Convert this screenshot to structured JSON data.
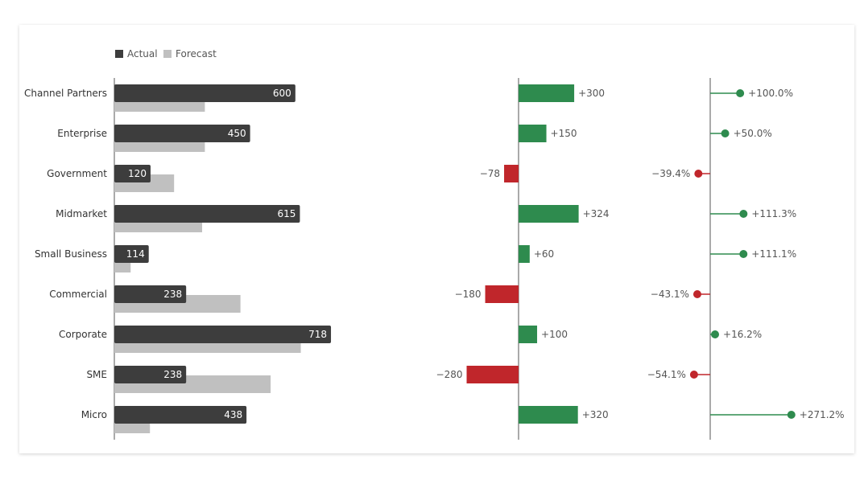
{
  "chart_data": {
    "type": "bar",
    "legend": {
      "placement": "top-left",
      "items": [
        {
          "label": "Actual",
          "color": "#3d3d3d"
        },
        {
          "label": "Forecast",
          "color": "#c0c0c0"
        }
      ]
    },
    "categories": [
      "Channel Partners",
      "Enterprise",
      "Government",
      "Midmarket",
      "Small Business",
      "Commercial",
      "Corporate",
      "SME",
      "Micro"
    ],
    "series": [
      {
        "name": "Actual",
        "values": [
          600,
          450,
          120,
          615,
          114,
          238,
          718,
          238,
          438
        ],
        "labels": [
          "600",
          "450",
          "120",
          "615",
          "114",
          "238",
          "718",
          "238",
          "438"
        ]
      },
      {
        "name": "Forecast",
        "values": [
          300,
          300,
          198,
          291,
          54,
          418,
          618,
          518,
          118
        ]
      }
    ],
    "variance": {
      "values": [
        300,
        150,
        -78,
        324,
        60,
        -180,
        100,
        -280,
        320
      ],
      "labels": [
        "+300",
        "+150",
        "−78",
        "+324",
        "+60",
        "−180",
        "+100",
        "−280",
        "+320"
      ]
    },
    "variance_percent": {
      "values": [
        100.0,
        50.0,
        -39.4,
        111.3,
        111.1,
        -43.1,
        16.2,
        -54.1,
        271.2
      ],
      "labels": [
        "+100.0%",
        "+50.0%",
        "−39.4%",
        "+111.3%",
        "+111.1%",
        "−43.1%",
        "+16.2%",
        "−54.1%",
        "+271.2%"
      ]
    },
    "colors": {
      "actual": "#3d3d3d",
      "forecast": "#c0c0c0",
      "positive": "#2e8b4e",
      "negative": "#c0262b",
      "axis": "#555555",
      "text": "#333333"
    },
    "grid": false
  }
}
